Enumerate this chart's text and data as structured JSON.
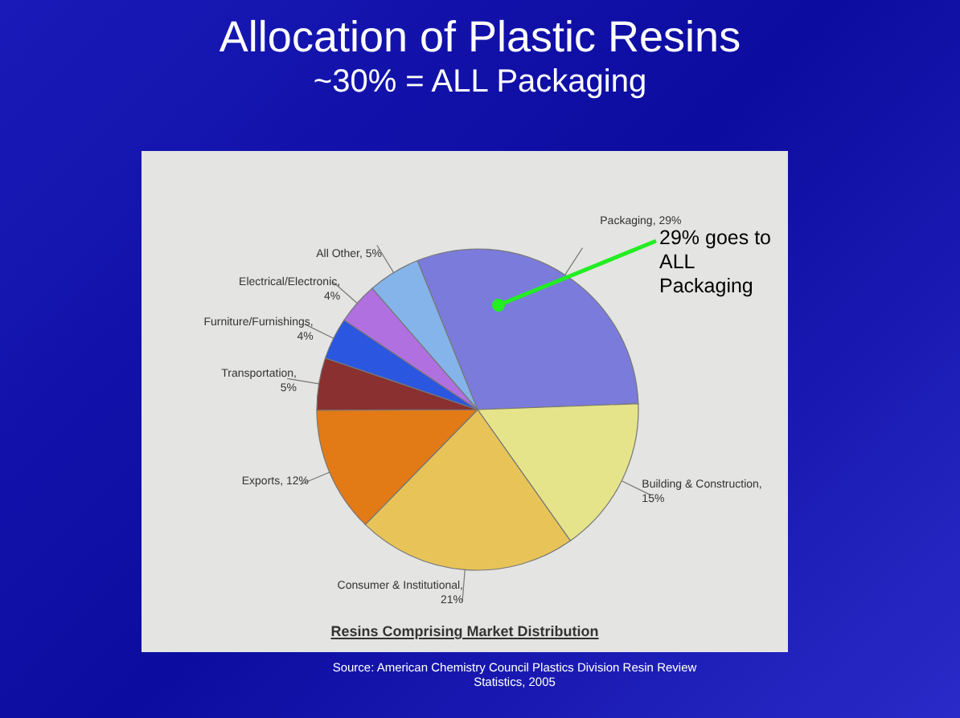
{
  "chart_data": {
    "type": "pie",
    "title": "Allocation of Plastic Resins",
    "subtitle": "~30% = ALL Packaging",
    "categories": [
      "Packaging, 29%",
      "Building & Construction, 15%",
      "Consumer & Institutional, 21%",
      "Exports, 12%",
      "Transportation, 5%",
      "Furniture/Furnishings, 4%",
      "Electrical/Electronic, 4%",
      "All Other, 5%"
    ],
    "values": [
      29,
      15,
      21,
      12,
      5,
      4,
      4,
      5
    ],
    "colors": [
      "#7b7bdc",
      "#e6e48a",
      "#e8c458",
      "#e27a16",
      "#8a3030",
      "#2a56e0",
      "#b070e0",
      "#84b4ea"
    ],
    "legend": false,
    "annotations": [
      "29%  goes to ALL Packaging",
      "Resins Comprising Market Distribution",
      "Source: American Chemistry Council Plastics Division Resin Review Statistics, 2005"
    ]
  }
}
